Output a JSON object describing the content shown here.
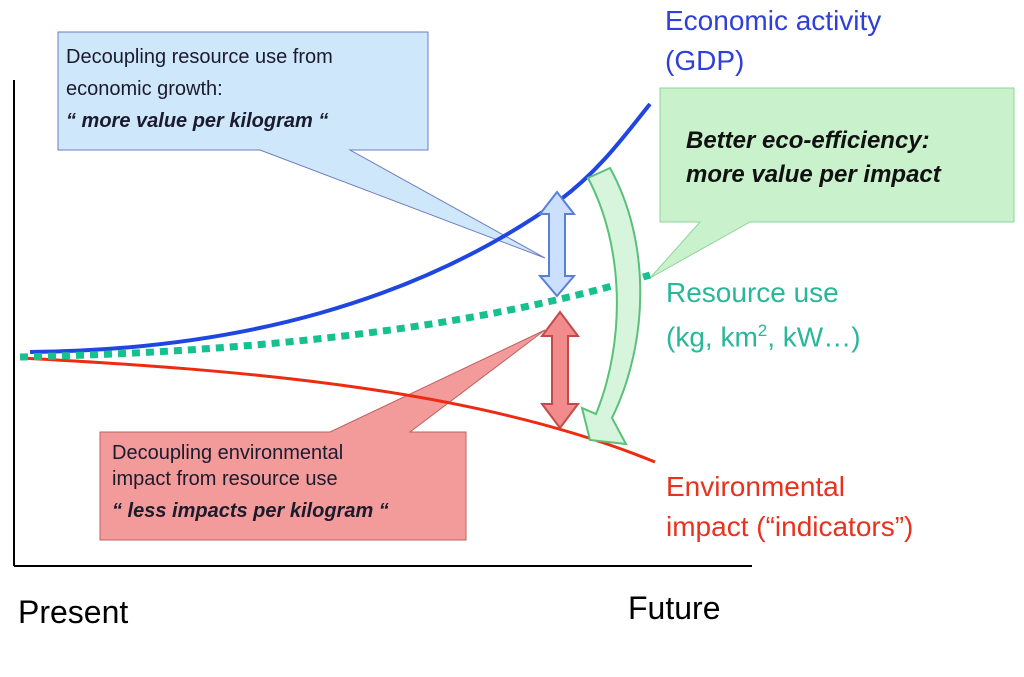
{
  "labels": {
    "gdp_line1": "Economic activity",
    "gdp_line2": "(GDP)",
    "resource_line1": "Resource use",
    "resource_line2_a": "(kg, km",
    "resource_line2_sup": "2",
    "resource_line2_b": ", kW…)",
    "env_line1": "Environmental",
    "env_line2": "impact (“indicators”)"
  },
  "axis": {
    "start_label": "Present",
    "end_label": "Future"
  },
  "callouts": {
    "blue": {
      "line1": "Decoupling resource use from",
      "line2": "economic growth:",
      "emphasis": "“ more value per kilogram “"
    },
    "green": {
      "line1": "Better eco-efficiency:",
      "line2": "more value per impact"
    },
    "red": {
      "line1": "Decoupling environmental",
      "line2": "impact from resource use",
      "emphasis": "“ less impacts per kilogram “"
    }
  },
  "colors": {
    "gdp": "#1f46e0",
    "resource": "#17c08f",
    "environment": "#ee2a10",
    "callout_blue": "#cfe7fb",
    "callout_green": "#c8f1cc",
    "callout_red": "#f39a9a"
  }
}
